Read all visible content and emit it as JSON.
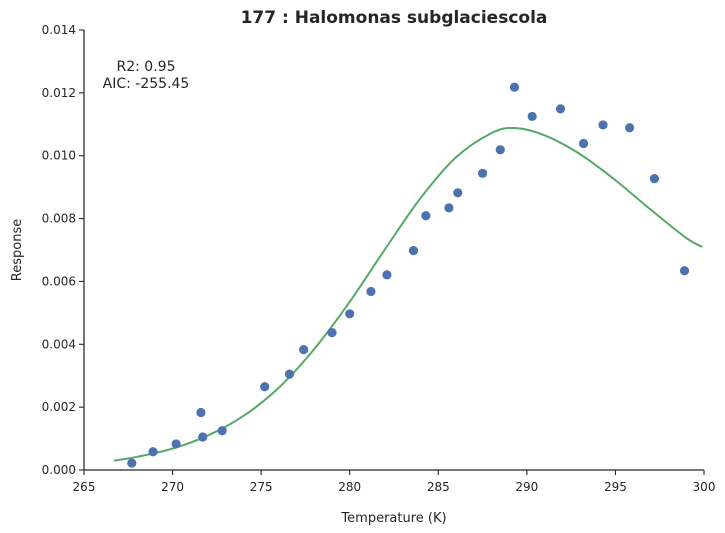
{
  "chart_data": {
    "type": "scatter",
    "title": "177 : Halomonas subglaciescola",
    "xlabel": "Temperature (K)",
    "ylabel": "Response",
    "xlim": [
      265,
      300
    ],
    "ylim": [
      0,
      0.014
    ],
    "xticks": [
      265,
      270,
      275,
      280,
      285,
      290,
      295,
      300
    ],
    "xtick_labels": [
      "265",
      "270",
      "275",
      "280",
      "285",
      "290",
      "295",
      "300"
    ],
    "yticks": [
      0,
      0.002,
      0.004,
      0.006,
      0.008,
      0.01,
      0.012,
      0.014
    ],
    "ytick_labels": [
      "0.000",
      "0.002",
      "0.004",
      "0.006",
      "0.008",
      "0.010",
      "0.012",
      "0.014"
    ],
    "grid": false,
    "annotations": [
      "R2: 0.95",
      "AIC: -255.45"
    ],
    "series": [
      {
        "kind": "points",
        "color": "#4c72b0",
        "x": [
          267.7,
          268.9,
          270.2,
          271.6,
          271.7,
          272.8,
          275.2,
          276.6,
          277.4,
          279.0,
          280.0,
          281.2,
          282.1,
          283.6,
          284.3,
          285.6,
          286.1,
          287.5,
          288.5,
          289.3,
          290.3,
          291.9,
          293.2,
          294.3,
          295.8,
          297.2,
          298.9
        ],
        "y": [
          0.00022,
          0.00058,
          0.00083,
          0.00183,
          0.00105,
          0.00125,
          0.00265,
          0.00305,
          0.00383,
          0.00437,
          0.00497,
          0.00568,
          0.00621,
          0.00698,
          0.00809,
          0.00834,
          0.00882,
          0.00944,
          0.01019,
          0.01218,
          0.01125,
          0.01149,
          0.01039,
          0.01098,
          0.01089,
          0.00927,
          0.00634
        ]
      },
      {
        "kind": "line",
        "color": "#55a868",
        "x": [
          266.7,
          268,
          270,
          272,
          274,
          276,
          278,
          280,
          282,
          284,
          286,
          288,
          289.3,
          291,
          293,
          295,
          297,
          299,
          299.9
        ],
        "y": [
          0.0003,
          0.00042,
          0.00068,
          0.0011,
          0.00172,
          0.00262,
          0.00385,
          0.00535,
          0.00703,
          0.00865,
          0.00995,
          0.01072,
          0.01088,
          0.01065,
          0.01005,
          0.00922,
          0.00828,
          0.00738,
          0.0071
        ]
      }
    ]
  }
}
